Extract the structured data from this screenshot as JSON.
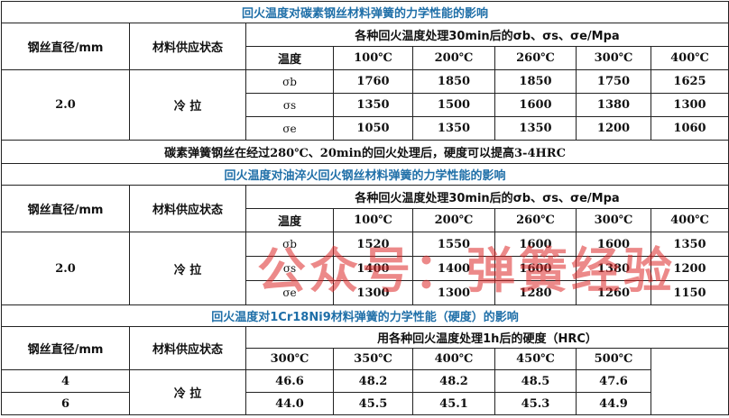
{
  "table1": {
    "title": "回火温度对碳素钢丝材料弹簧的力学性能的影响",
    "col_diameter": "钢丝直径/mm",
    "col_state": "材料供应状态",
    "group_header": "各种回火温度处理30min后的σb、σs、σe/Mpa",
    "temp_label": "温度",
    "temps": [
      "100℃",
      "200℃",
      "260℃",
      "300℃",
      "400℃"
    ],
    "diameter": "2.0",
    "state": "冷 拉",
    "rows": [
      {
        "label": "σb",
        "values": [
          "1760",
          "1850",
          "1850",
          "1750",
          "1625"
        ]
      },
      {
        "label": "σs",
        "values": [
          "1350",
          "1500",
          "1600",
          "1380",
          "1300"
        ]
      },
      {
        "label": "σe",
        "values": [
          "1050",
          "1350",
          "1350",
          "1200",
          "1060"
        ]
      }
    ]
  },
  "note": "碳素弹簧钢丝在经过280℃、20min的回火处理后，硬度可以提高3-4HRC",
  "table2": {
    "title": "回火温度对油淬火回火钢丝材料弹簧的力学性能的影响",
    "col_diameter": "钢丝直径/mm",
    "col_state": "材料供应状态",
    "group_header": "各种回火温度处理30min后的σb、σs、σe/Mpa",
    "temp_label": "温度",
    "temps": [
      "100℃",
      "200℃",
      "260℃",
      "300℃",
      "400℃"
    ],
    "diameter": "2.0",
    "state": "冷 拉",
    "rows": [
      {
        "label": "σb",
        "values": [
          "1520",
          "1550",
          "1600",
          "1600",
          "1350"
        ]
      },
      {
        "label": "σs",
        "values": [
          "1400",
          "1400",
          "1600",
          "1380",
          "1200"
        ]
      },
      {
        "label": "σe",
        "values": [
          "1300",
          "1300",
          "1280",
          "1260",
          "1150"
        ]
      }
    ]
  },
  "table3": {
    "title": "回火温度对1Cr18Ni9材料弹簧的力学性能（硬度）的影响",
    "col_diameter": "钢丝直径/mm",
    "col_state": "材料供应状态",
    "group_header": "用各种回火温度处理1h后的硬度（HRC）",
    "temps": [
      "300℃",
      "350℃",
      "400℃",
      "450℃",
      "500℃"
    ],
    "state": "冷 拉",
    "rows": [
      {
        "diameter": "4",
        "values": [
          "46.6",
          "48.2",
          "48.2",
          "48.5",
          "47.6"
        ]
      },
      {
        "diameter": "6",
        "values": [
          "44.0",
          "45.5",
          "45.1",
          "45.3",
          "44.9"
        ]
      }
    ]
  },
  "watermark": "公众号：弹簧经验",
  "colors": {
    "title": "#1f6fa8",
    "watermark": "#dc2828"
  }
}
